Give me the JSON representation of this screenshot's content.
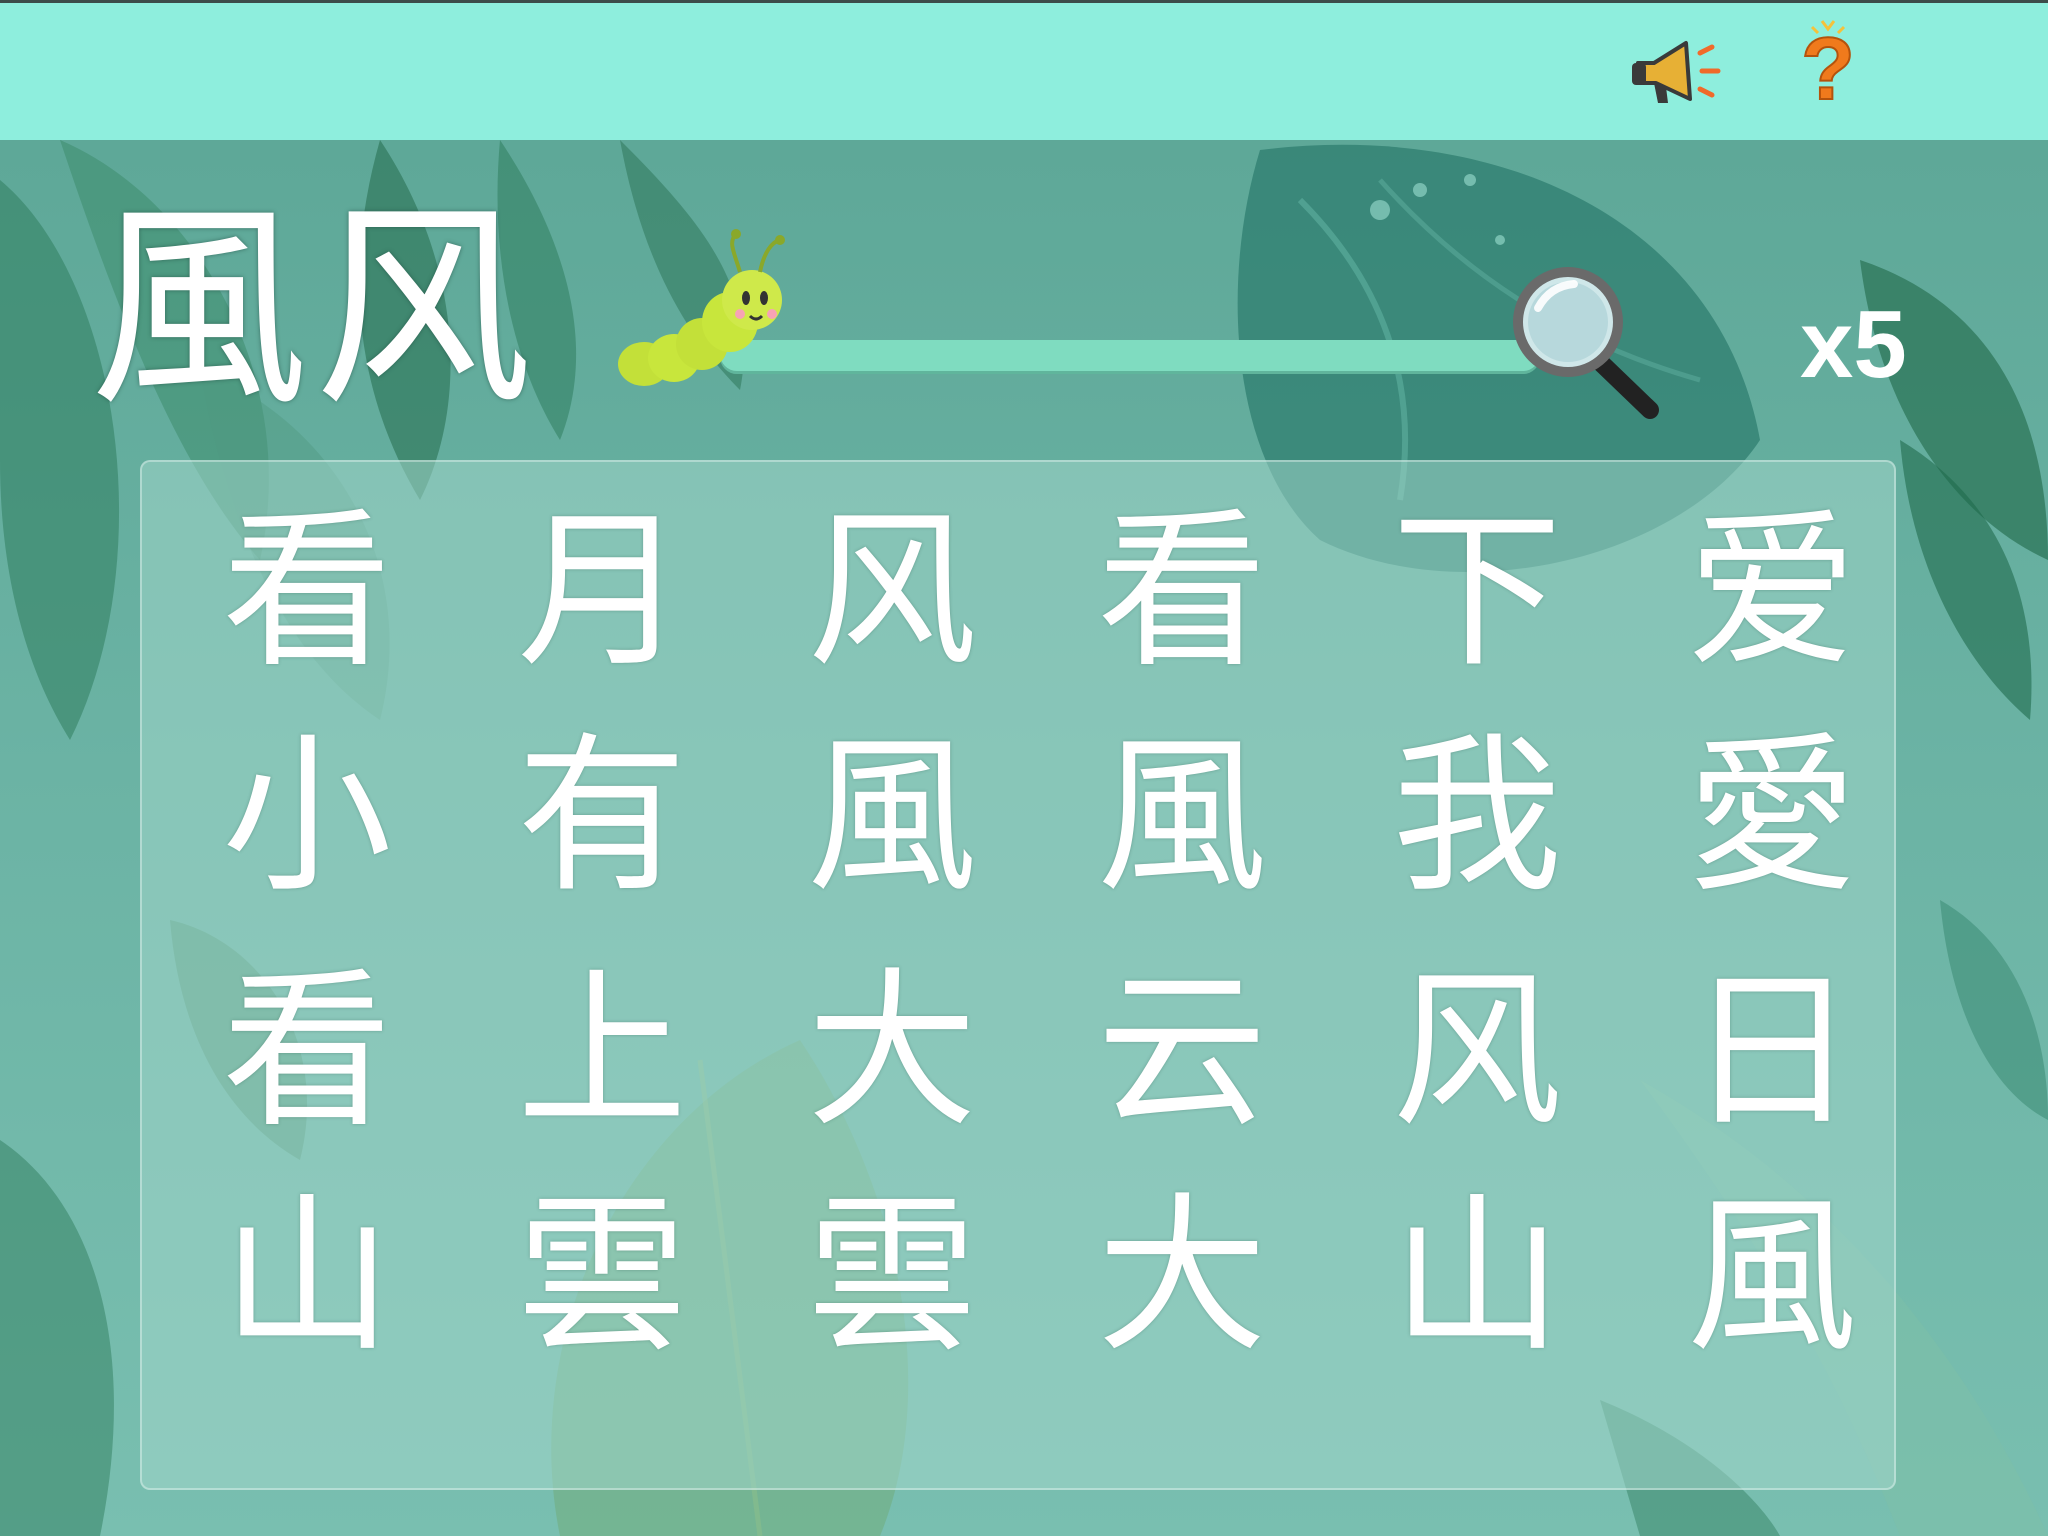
{
  "toolbar": {
    "sound_icon": "speaker-megaphone-icon",
    "help_icon": "question-mark-icon",
    "help_symbol": "?"
  },
  "target": {
    "traditional": "風",
    "simplified": "风"
  },
  "progress": {
    "value": 0,
    "count_label": "x5"
  },
  "grid": [
    [
      "看",
      "月",
      "风",
      "看",
      "下",
      "爱"
    ],
    [
      "小",
      "有",
      "風",
      "風",
      "我",
      "愛"
    ],
    [
      "看",
      "上",
      "大",
      "云",
      "风",
      "日"
    ],
    [
      "山",
      "雲",
      "雲",
      "大",
      "山",
      "風"
    ]
  ],
  "colors": {
    "topbar": "#8eeedd",
    "track": "#7fdcc0",
    "caterpillar": "#c8e63c",
    "help": "#f07a1c",
    "text": "#ffffff"
  }
}
